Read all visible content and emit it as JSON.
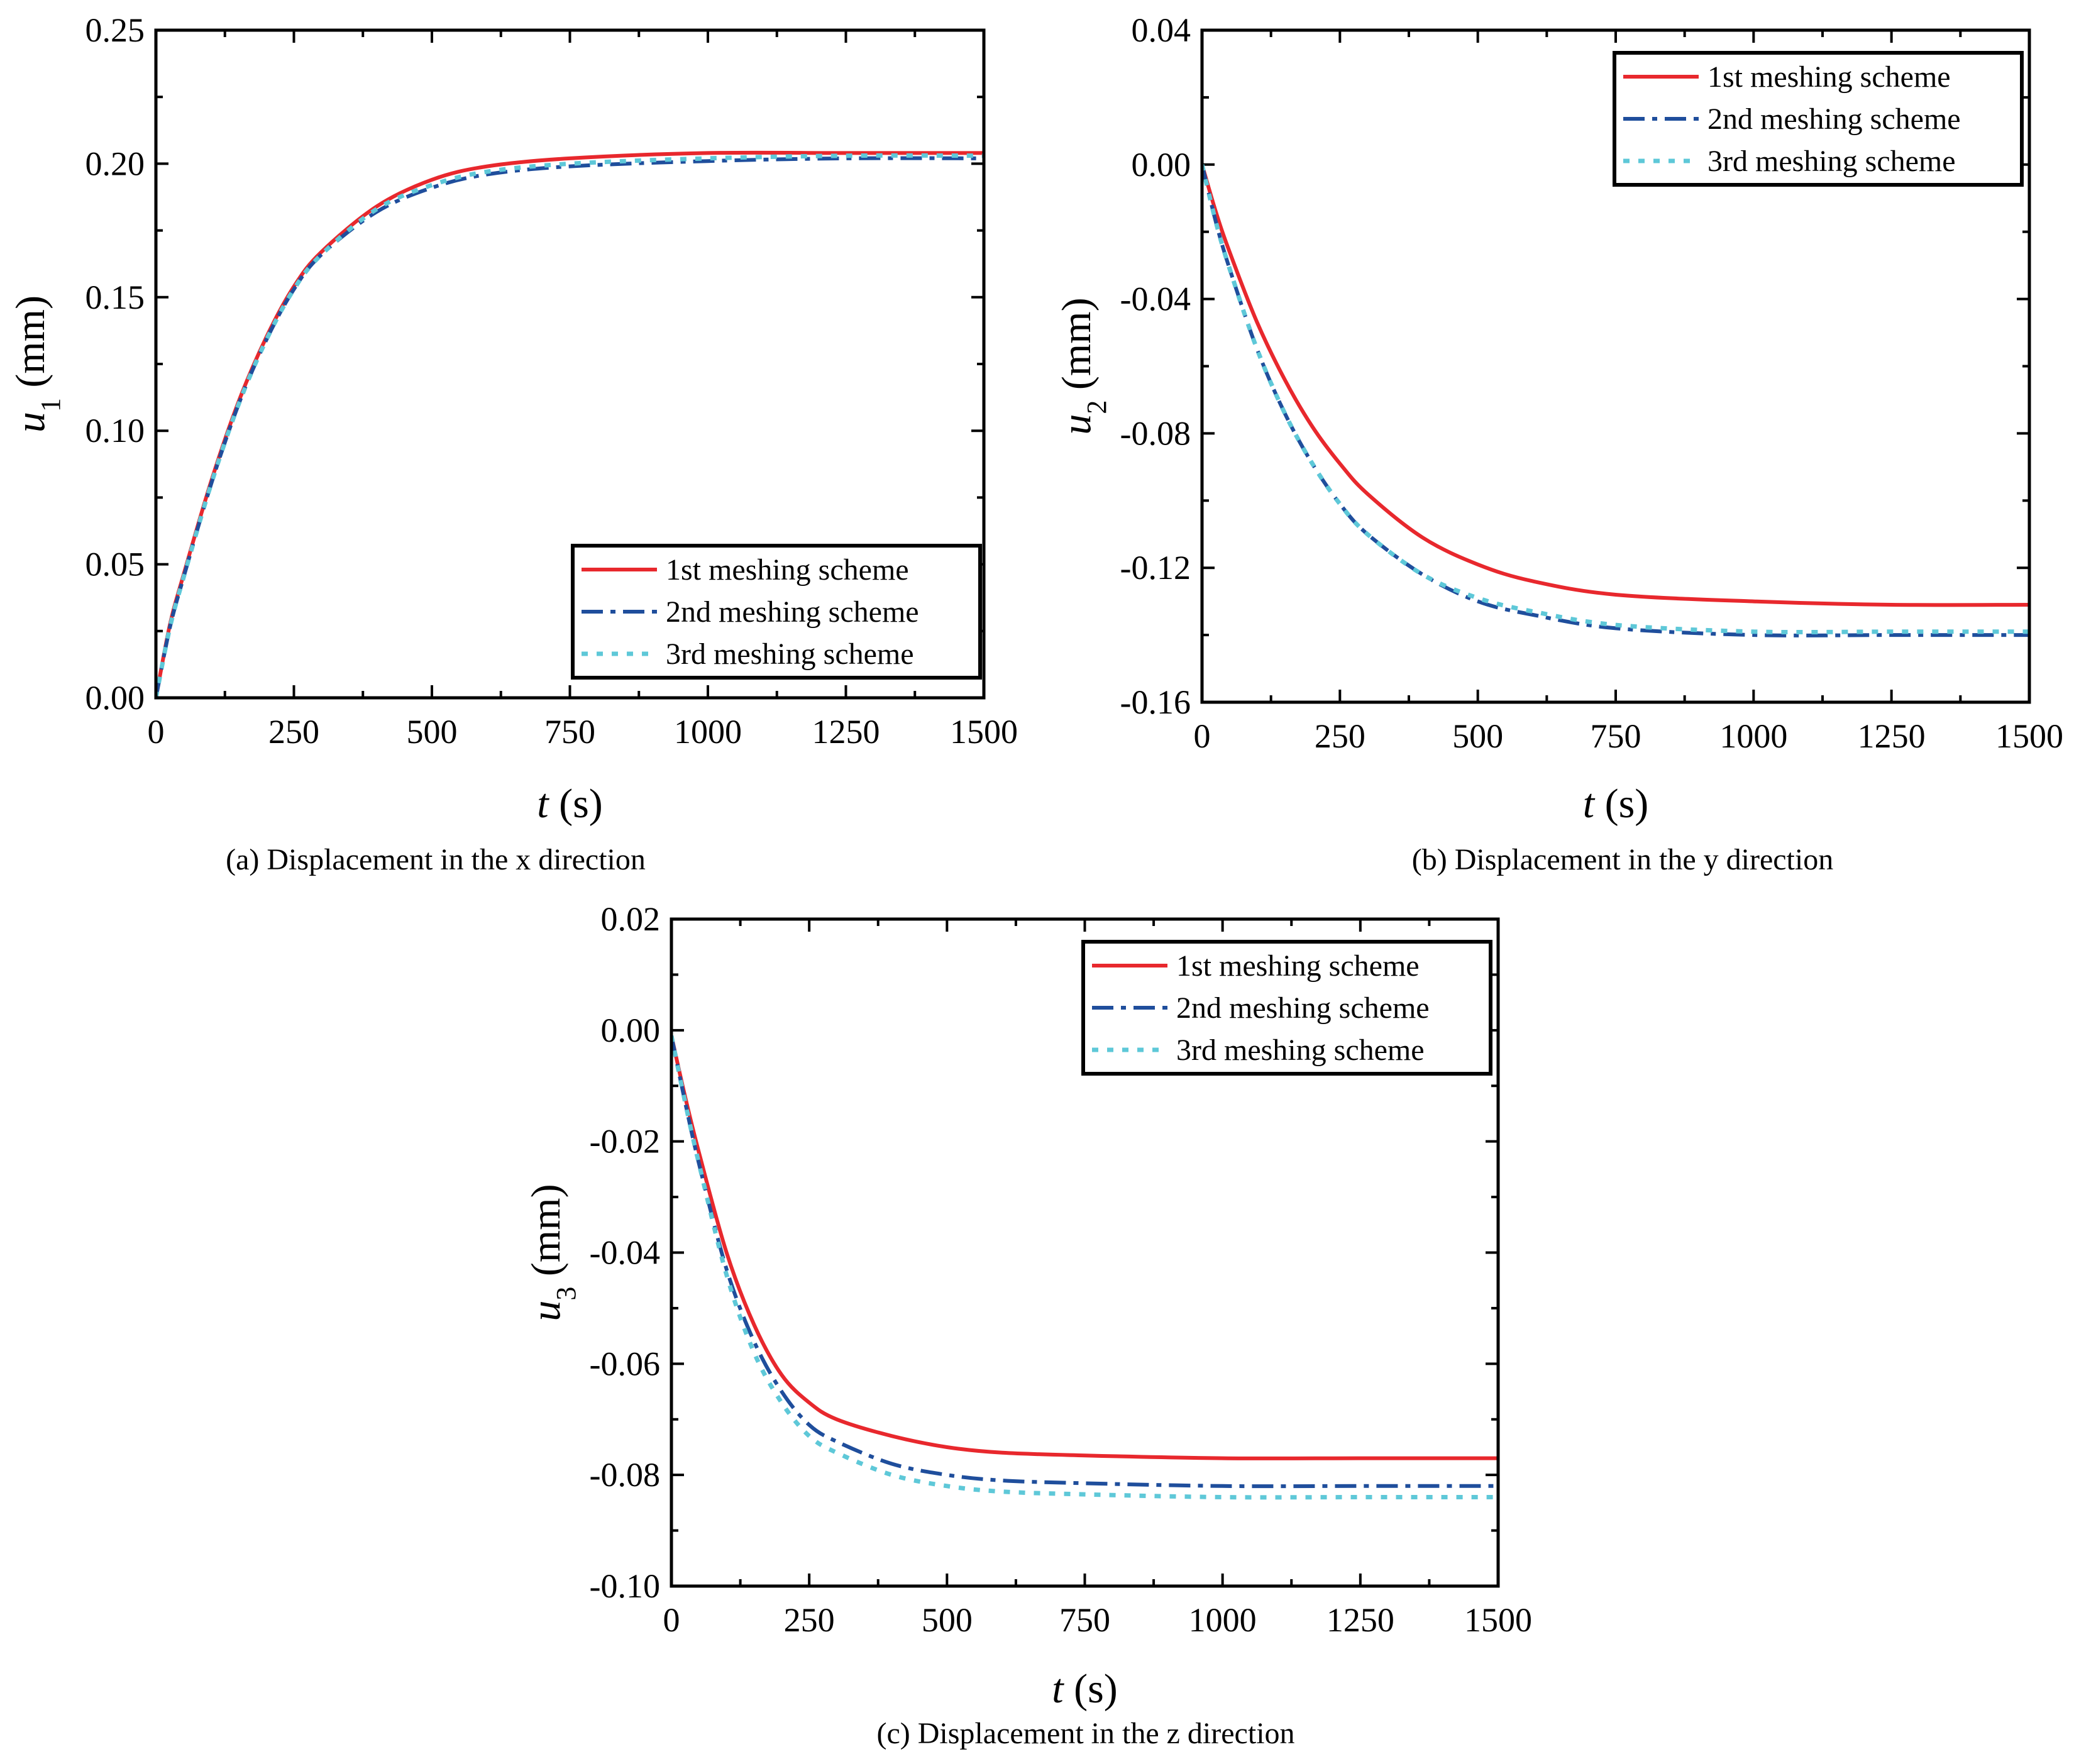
{
  "colors": {
    "series1": "#e8282d",
    "series2": "#1f4e9c",
    "series3": "#5ec8d8",
    "axis": "#000000"
  },
  "chart_data": [
    {
      "type": "line",
      "panel": "a",
      "caption": "(a) Displacement in the x direction",
      "xlabel_var": "t",
      "xlabel_unit": " (s)",
      "ylabel_var": "u",
      "ylabel_sub": "1",
      "ylabel_unit": " (mm)",
      "xlim": [
        0,
        1500
      ],
      "ylim": [
        0,
        0.25
      ],
      "xticks": [
        0,
        250,
        500,
        750,
        1000,
        1250,
        1500
      ],
      "xtick_labels": [
        "0",
        "250",
        "500",
        "750",
        "1000",
        "1250",
        "1500"
      ],
      "yticks": [
        0,
        0.05,
        0.1,
        0.15,
        0.2,
        0.25
      ],
      "ytick_labels": [
        "0.00",
        "0.05",
        "0.10",
        "0.15",
        "0.20",
        "0.25"
      ],
      "legend_position": "bottom-right",
      "x": [
        0,
        25,
        50,
        100,
        150,
        200,
        250,
        300,
        400,
        500,
        600,
        750,
        1000,
        1250,
        1500
      ],
      "series": [
        {
          "name": "1st meshing scheme",
          "style": "solid",
          "values": [
            0,
            0.027,
            0.046,
            0.081,
            0.111,
            0.135,
            0.154,
            0.167,
            0.184,
            0.194,
            0.199,
            0.202,
            0.204,
            0.204,
            0.204
          ]
        },
        {
          "name": "2nd meshing scheme",
          "style": "dashdot",
          "values": [
            0,
            0.026,
            0.045,
            0.08,
            0.11,
            0.134,
            0.153,
            0.166,
            0.182,
            0.191,
            0.196,
            0.199,
            0.201,
            0.202,
            0.202
          ]
        },
        {
          "name": "3rd meshing scheme",
          "style": "dot",
          "values": [
            0,
            0.026,
            0.045,
            0.08,
            0.11,
            0.134,
            0.153,
            0.166,
            0.183,
            0.192,
            0.197,
            0.2,
            0.202,
            0.203,
            0.203
          ]
        }
      ]
    },
    {
      "type": "line",
      "panel": "b",
      "caption": "(b) Displacement in the y direction",
      "xlabel_var": "t",
      "xlabel_unit": " (s)",
      "ylabel_var": "u",
      "ylabel_sub": "2",
      "ylabel_unit": " (mm)",
      "xlim": [
        0,
        1500
      ],
      "ylim": [
        -0.16,
        0.04
      ],
      "xticks": [
        0,
        250,
        500,
        750,
        1000,
        1250,
        1500
      ],
      "xtick_labels": [
        "0",
        "250",
        "500",
        "750",
        "1000",
        "1250",
        "1500"
      ],
      "yticks": [
        -0.16,
        -0.12,
        -0.08,
        -0.04,
        0.0,
        0.04
      ],
      "ytick_labels": [
        "-0.16",
        "-0.12",
        "-0.08",
        "-0.04",
        "0.00",
        "0.04"
      ],
      "legend_position": "top-right",
      "x": [
        0,
        25,
        50,
        100,
        150,
        200,
        250,
        300,
        400,
        500,
        600,
        750,
        1000,
        1250,
        1500
      ],
      "series": [
        {
          "name": "1st meshing scheme",
          "style": "solid",
          "values": [
            0,
            -0.014,
            -0.026,
            -0.047,
            -0.064,
            -0.078,
            -0.089,
            -0.098,
            -0.111,
            -0.119,
            -0.124,
            -0.128,
            -0.13,
            -0.131,
            -0.131
          ]
        },
        {
          "name": "2nd meshing scheme",
          "style": "dashdot",
          "values": [
            0,
            -0.017,
            -0.031,
            -0.055,
            -0.074,
            -0.089,
            -0.101,
            -0.11,
            -0.122,
            -0.13,
            -0.134,
            -0.138,
            -0.14,
            -0.14,
            -0.14
          ]
        },
        {
          "name": "3rd meshing scheme",
          "style": "dot",
          "values": [
            0,
            -0.017,
            -0.031,
            -0.055,
            -0.074,
            -0.089,
            -0.101,
            -0.11,
            -0.122,
            -0.129,
            -0.133,
            -0.137,
            -0.139,
            -0.139,
            -0.139
          ]
        }
      ]
    },
    {
      "type": "line",
      "panel": "c",
      "caption": "(c) Displacement in the z direction",
      "xlabel_var": "t",
      "xlabel_unit": " (s)",
      "ylabel_var": "u",
      "ylabel_sub": "3",
      "ylabel_unit": " (mm)",
      "xlim": [
        0,
        1500
      ],
      "ylim": [
        -0.1,
        0.02
      ],
      "xticks": [
        0,
        250,
        500,
        750,
        1000,
        1250,
        1500
      ],
      "xtick_labels": [
        "0",
        "250",
        "500",
        "750",
        "1000",
        "1250",
        "1500"
      ],
      "yticks": [
        -0.1,
        -0.08,
        -0.06,
        -0.04,
        -0.02,
        0.0,
        0.02
      ],
      "ytick_labels": [
        "-0.10",
        "-0.08",
        "-0.06",
        "-0.04",
        "-0.02",
        "0.00",
        "0.02"
      ],
      "legend_position": "top-right",
      "x": [
        0,
        25,
        50,
        100,
        150,
        200,
        250,
        300,
        400,
        500,
        600,
        750,
        1000,
        1250,
        1500
      ],
      "series": [
        {
          "name": "1st meshing scheme",
          "style": "solid",
          "values": [
            -0.001,
            -0.012,
            -0.022,
            -0.04,
            -0.053,
            -0.062,
            -0.067,
            -0.07,
            -0.073,
            -0.075,
            -0.076,
            -0.0765,
            -0.077,
            -0.077,
            -0.077
          ]
        },
        {
          "name": "2nd meshing scheme",
          "style": "dashdot",
          "values": [
            -0.001,
            -0.013,
            -0.024,
            -0.043,
            -0.056,
            -0.065,
            -0.071,
            -0.074,
            -0.078,
            -0.08,
            -0.081,
            -0.0815,
            -0.082,
            -0.082,
            -0.082
          ]
        },
        {
          "name": "3rd meshing scheme",
          "style": "dot",
          "values": [
            -0.001,
            -0.013,
            -0.024,
            -0.044,
            -0.058,
            -0.067,
            -0.073,
            -0.076,
            -0.08,
            -0.082,
            -0.083,
            -0.0835,
            -0.084,
            -0.084,
            -0.084
          ]
        }
      ]
    }
  ]
}
